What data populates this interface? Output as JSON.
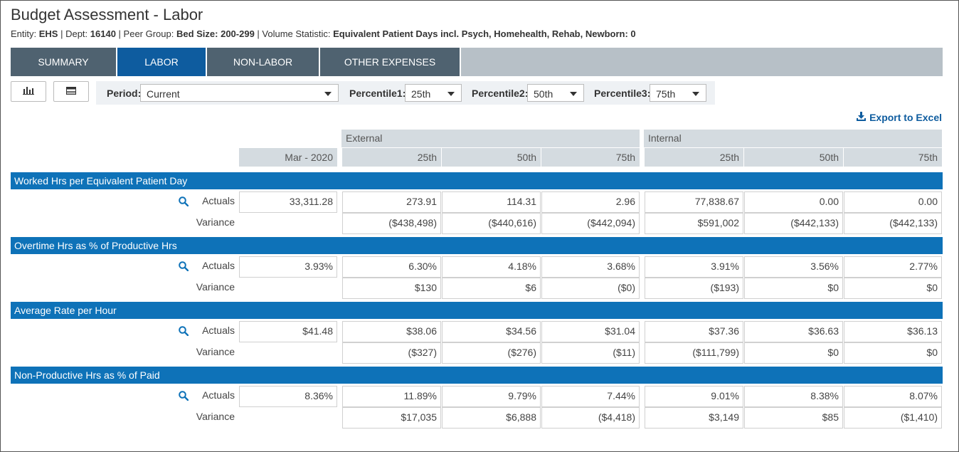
{
  "title": "Budget Assessment - Labor",
  "subtitle": {
    "entity_label": "Entity: ",
    "entity": "EHS",
    "dept_label": " | Dept: ",
    "dept": "16140",
    "peer_label": " | Peer Group: ",
    "peer": "Bed Size: 200-299",
    "volume_label": " | Volume Statistic: ",
    "volume": "Equivalent Patient Days incl. Psych, Homehealth, Rehab, Newborn: 0"
  },
  "tabs": [
    {
      "label": "SUMMARY",
      "active": false
    },
    {
      "label": "LABOR",
      "active": true
    },
    {
      "label": "NON-LABOR",
      "active": false
    },
    {
      "label": "OTHER EXPENSES",
      "active": false
    }
  ],
  "toolbar": {
    "chart_icon": "bar-chart-icon",
    "table_icon": "table-icon"
  },
  "filters": {
    "period_label": "Period:",
    "period_value": "Current",
    "p1_label": "Percentile1:",
    "p1_value": "25th",
    "p2_label": "Percentile2:",
    "p2_value": "50th",
    "p3_label": "Percentile3:",
    "p3_value": "75th"
  },
  "export_label": "Export to Excel",
  "groups": {
    "external": "External",
    "internal": "Internal"
  },
  "columns": [
    "Mar - 2020",
    "25th",
    "50th",
    "75th",
    "25th",
    "50th",
    "75th"
  ],
  "row_labels": {
    "actuals": "Actuals",
    "variance": "Variance"
  },
  "sections": [
    {
      "title": "Worked Hrs per Equivalent Patient Day",
      "actuals": [
        "33,311.28",
        "273.91",
        "114.31",
        "2.96",
        "77,838.67",
        "0.00",
        "0.00"
      ],
      "variance": [
        "($438,498)",
        "($440,616)",
        "($442,094)",
        "$591,002",
        "($442,133)",
        "($442,133)"
      ]
    },
    {
      "title": "Overtime Hrs as % of Productive Hrs",
      "actuals": [
        "3.93%",
        "6.30%",
        "4.18%",
        "3.68%",
        "3.91%",
        "3.56%",
        "2.77%"
      ],
      "variance": [
        "$130",
        "$6",
        "($0)",
        "($193)",
        "$0",
        "$0"
      ]
    },
    {
      "title": "Average Rate per Hour",
      "actuals": [
        "$41.48",
        "$38.06",
        "$34.56",
        "$31.04",
        "$37.36",
        "$36.63",
        "$36.13"
      ],
      "variance": [
        "($327)",
        "($276)",
        "($11)",
        "($111,799)",
        "$0",
        "$0"
      ]
    },
    {
      "title": "Non-Productive Hrs as % of Paid",
      "actuals": [
        "8.36%",
        "11.89%",
        "9.79%",
        "7.44%",
        "9.01%",
        "8.38%",
        "8.07%"
      ],
      "variance": [
        "$17,035",
        "$6,888",
        "($4,418)",
        "$3,149",
        "$85",
        "($1,410)"
      ]
    }
  ],
  "colors": {
    "tab_bg": "#4f6270",
    "tab_active": "#0e5c9f",
    "section_bg": "#0e72b8",
    "header_bg": "#d4dbe0"
  }
}
